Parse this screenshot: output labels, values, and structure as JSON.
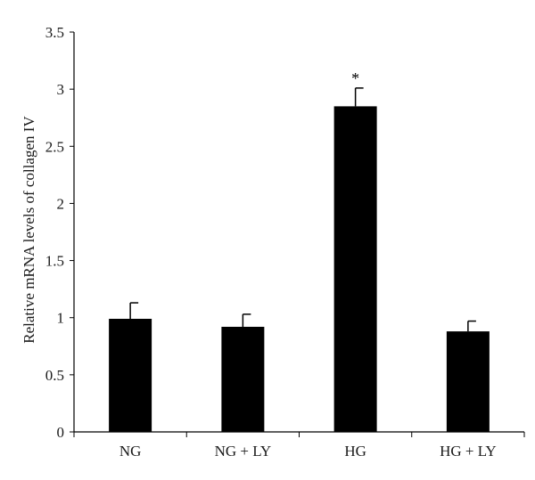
{
  "chart_data": {
    "type": "bar",
    "categories": [
      "NG",
      "NG + LY",
      "HG",
      "HG + LY"
    ],
    "values": [
      0.99,
      0.92,
      2.85,
      0.88
    ],
    "errors": [
      0.14,
      0.11,
      0.16,
      0.09
    ],
    "annotations": [
      "",
      "",
      "*",
      ""
    ],
    "ylabel": "Relative mRNA levels of collagen IV",
    "xlabel": "",
    "title": "",
    "ylim": [
      0,
      3.5
    ],
    "yticks": [
      0,
      0.5,
      1,
      1.5,
      2,
      2.5,
      3,
      3.5
    ],
    "ytick_labels": [
      "0",
      "0.5",
      "1",
      "1.5",
      "2",
      "2.5",
      "3",
      "3.5"
    ],
    "grid": false,
    "bar_color": "#000000"
  }
}
